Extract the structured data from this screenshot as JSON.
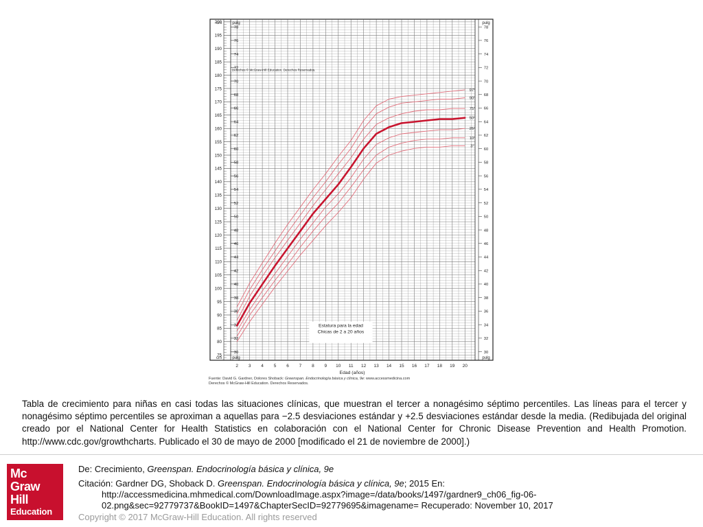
{
  "chart_data": {
    "type": "line",
    "title": "Estatura para la edad",
    "subtitle": "Chicas de 2 a 20 años",
    "xlabel": "Edad (años)",
    "ylabel_left_unit": "cm",
    "ylabel_right_unit": "pulg",
    "copyright_note": "Derechos © McGraw-Hill Education. Derechos Reservados.",
    "xlim": [
      1.5,
      20.8
    ],
    "ylim": [
      73,
      201
    ],
    "x_ticks": [
      2,
      3,
      4,
      5,
      6,
      7,
      8,
      9,
      10,
      11,
      12,
      13,
      14,
      15,
      16,
      17,
      18,
      19,
      20
    ],
    "cm_ticks": [
      75,
      80,
      85,
      90,
      95,
      100,
      105,
      110,
      115,
      120,
      125,
      130,
      135,
      140,
      145,
      150,
      155,
      160,
      165,
      170,
      175,
      180,
      185,
      190,
      195,
      200
    ],
    "in_ticks": [
      30,
      32,
      34,
      36,
      38,
      40,
      42,
      44,
      46,
      48,
      50,
      52,
      54,
      56,
      58,
      60,
      62,
      64,
      66,
      68,
      70,
      72,
      74,
      76,
      78
    ],
    "grid": true,
    "ages": [
      2,
      3,
      4,
      5,
      6,
      7,
      8,
      9,
      10,
      11,
      12,
      13,
      14,
      15,
      16,
      17,
      18,
      19,
      20
    ],
    "series": [
      {
        "name": "97°",
        "values": [
          93,
          102,
          109.5,
          117,
          124,
          130.5,
          137,
          143,
          149.5,
          155.5,
          163,
          168.5,
          171,
          172,
          172.5,
          173,
          173.5,
          174,
          174.5
        ]
      },
      {
        "name": "90°",
        "values": [
          90.5,
          99.5,
          107,
          114,
          121,
          127.5,
          134,
          140,
          146.5,
          152.5,
          160,
          165.5,
          168,
          169.5,
          170,
          170.5,
          171,
          171,
          171.5
        ]
      },
      {
        "name": "75°",
        "values": [
          88,
          97,
          104.5,
          111.5,
          118,
          124.5,
          131,
          137,
          143,
          149,
          156,
          161.5,
          164,
          165.5,
          166.5,
          167,
          167,
          167.5,
          167.5
        ]
      },
      {
        "name": "50°",
        "values": [
          86,
          94.5,
          101.5,
          108.5,
          115,
          121.5,
          128,
          133.5,
          139,
          145.5,
          152.5,
          158,
          160.5,
          162,
          162.5,
          163,
          163.5,
          163.5,
          164
        ]
      },
      {
        "name": "25°",
        "values": [
          84,
          92,
          99,
          105.5,
          112,
          118.5,
          124.5,
          130.5,
          135.5,
          141.5,
          148.5,
          154,
          156.5,
          158,
          158.5,
          159,
          159.5,
          159.5,
          160
        ]
      },
      {
        "name": "10°",
        "values": [
          82,
          90,
          96.5,
          103,
          109,
          115.5,
          121.5,
          127,
          132,
          138,
          144.5,
          150,
          153,
          154.5,
          155.5,
          156,
          156,
          156.5,
          156.5
        ]
      },
      {
        "name": "3°",
        "values": [
          80,
          87.5,
          94,
          100.5,
          106.5,
          112.5,
          118,
          123.5,
          128.5,
          134,
          141,
          147,
          150,
          151.5,
          152.5,
          153,
          153,
          153.5,
          153.5
        ]
      }
    ],
    "highlight_series": "50°",
    "colors": {
      "line": "#e26d7a",
      "median": "#c8152f",
      "grid": "#7a7a7a",
      "frame": "#222222"
    },
    "legend_placement": "right-end-of-lines"
  },
  "source_note": {
    "prefix": "Fuente: David G. Gardner, Dolores Shoback: ",
    "book": "Greenspan. Endocrinología básica y clínica, 9e",
    "suffix": ": www.accessmedicina.com",
    "rights": "Derechos © McGraw-Hill Education. Derechos Reservados."
  },
  "caption": "Tabla de crecimiento para niñas en casi todas las situaciones clínicas, que muestran el tercer a nonagésimo séptimo percentiles. Las líneas para el tercer y nonagésimo séptimo percentiles se aproximan a aquellas para −2.5 desviaciones estándar y +2.5 desviaciones estándar desde la media. (Redibujada del original creado por el National Center for Health Statistics en colaboración con el National Center for Chronic Disease Prevention and Health Promotion. http://www.cdc.gov/growthcharts. Publicado el 30 de mayo de 2000 [modificado el 21 de noviembre de 2000].)",
  "logo": {
    "line1": "Mc",
    "line2": "Graw",
    "line3": "Hill",
    "line4": "Education",
    "color": "#c8102e"
  },
  "reference": {
    "from_prefix": "De: Crecimiento, ",
    "from_book": "Greenspan. Endocrinología básica y clínica, 9e",
    "cite_prefix": "Citación: Gardner DG, Shoback D. ",
    "cite_book": "Greenspan. Endocrinología básica y clínica, 9e",
    "cite_suffix": "; 2015 En:",
    "cite_url_1": "http://accessmedicina.mhmedical.com/DownloadImage.aspx?image=/data/books/1497/gardner9_ch06_fig-06-",
    "cite_url_2": "02.png&sec=92779737&BookID=1497&ChapterSecID=92779695&imagename= Recuperado: November 10, 2017"
  },
  "copyright": "Copyright © 2017 McGraw-Hill Education. All rights reserved"
}
